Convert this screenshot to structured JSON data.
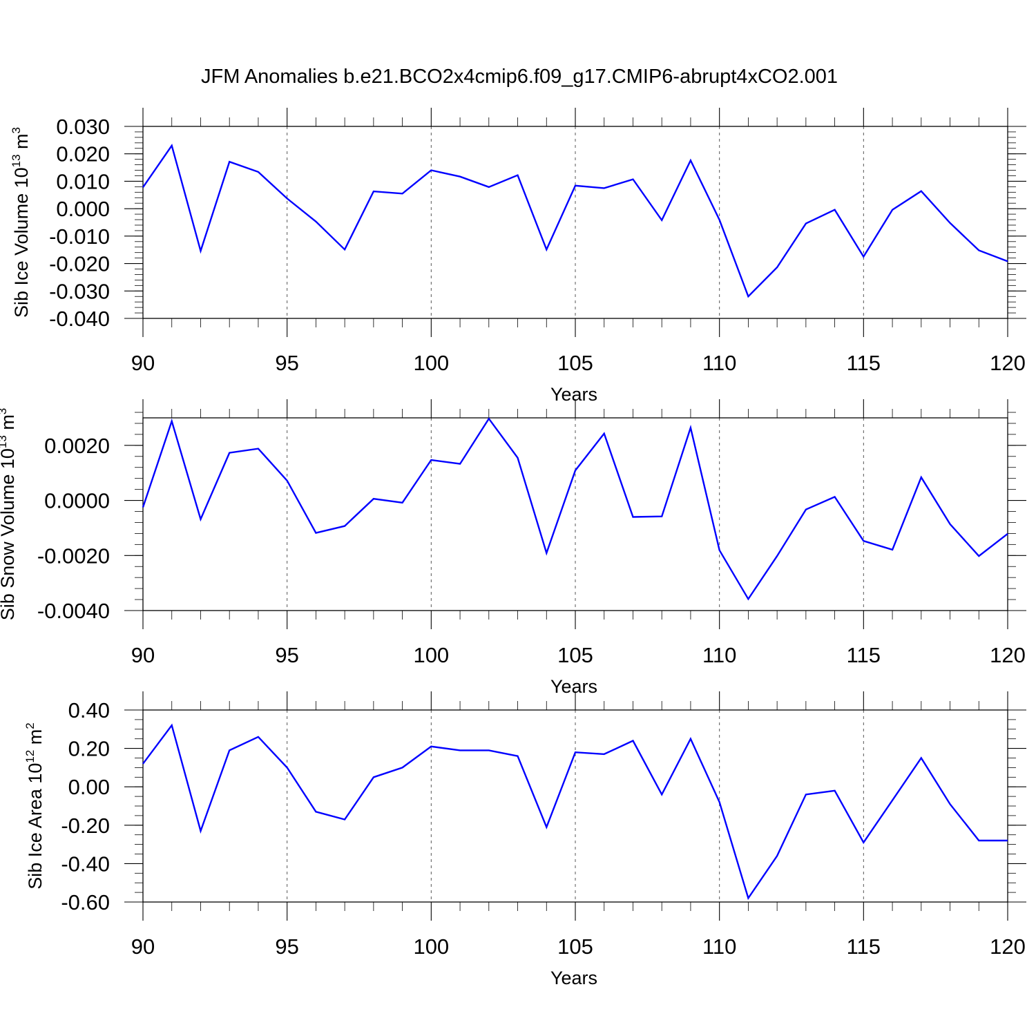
{
  "title": "JFM Anomalies b.e21.BCO2x4cmip6.f09_g17.CMIP6-abrupt4xCO2.001",
  "colors": {
    "series": "#0000ff",
    "axis": "#000000",
    "grid": "#555555"
  },
  "chart_data": [
    {
      "type": "line",
      "xlabel": "Years",
      "ylabel_main": "Sib Ice Volume 10",
      "ylabel_exp": "13",
      "ylabel_unit": " m",
      "ylabel_unit_exp": "3",
      "xlim": [
        90,
        120
      ],
      "ylim": [
        -0.04,
        0.03
      ],
      "x_ticks": [
        "90",
        "95",
        "100",
        "105",
        "110",
        "115",
        "120"
      ],
      "y_ticks": [
        {
          "value": 0.03,
          "label": "0.030"
        },
        {
          "value": 0.02,
          "label": "0.020"
        },
        {
          "value": 0.01,
          "label": "0.010"
        },
        {
          "value": 0.0,
          "label": "0.000"
        },
        {
          "value": -0.01,
          "label": "-0.010"
        },
        {
          "value": -0.02,
          "label": "-0.020"
        },
        {
          "value": -0.03,
          "label": "-0.030"
        },
        {
          "value": -0.04,
          "label": "-0.040"
        }
      ],
      "y_minor_step": 0.002,
      "grid": "dashed vertical at x tick positions",
      "x": [
        90,
        91,
        92,
        93,
        94,
        95,
        96,
        97,
        98,
        99,
        100,
        101,
        102,
        103,
        104,
        105,
        106,
        107,
        108,
        109,
        110,
        111,
        112,
        113,
        114,
        115,
        116,
        117,
        118,
        119,
        120
      ],
      "values": [
        0.0078,
        0.023,
        -0.0154,
        0.0171,
        0.0134,
        0.0037,
        -0.0047,
        -0.0149,
        0.0063,
        0.0055,
        0.014,
        0.0117,
        0.0079,
        0.0122,
        -0.0149,
        0.0084,
        0.0075,
        0.0107,
        -0.0042,
        0.0176,
        -0.0041,
        -0.032,
        -0.0214,
        -0.0054,
        -0.0004,
        -0.0175,
        -0.0004,
        0.0064,
        -0.0052,
        -0.0152,
        -0.0192
      ]
    },
    {
      "type": "line",
      "xlabel": "Years",
      "ylabel_main": "Sib Snow Volume 10",
      "ylabel_exp": "13",
      "ylabel_unit": " m",
      "ylabel_unit_exp": "3",
      "xlim": [
        90,
        120
      ],
      "ylim": [
        -0.004,
        0.003
      ],
      "x_ticks": [
        "90",
        "95",
        "100",
        "105",
        "110",
        "115",
        "120"
      ],
      "y_ticks": [
        {
          "value": 0.002,
          "label": "0.0020"
        },
        {
          "value": 0.0,
          "label": "0.0000"
        },
        {
          "value": -0.002,
          "label": "-0.0020"
        },
        {
          "value": -0.004,
          "label": "-0.0040"
        }
      ],
      "y_minor_step": 0.0004,
      "grid": "dashed vertical at x tick positions",
      "x": [
        90,
        91,
        92,
        93,
        94,
        95,
        96,
        97,
        98,
        99,
        100,
        101,
        102,
        103,
        104,
        105,
        106,
        107,
        108,
        109,
        110,
        111,
        112,
        113,
        114,
        115,
        116,
        117,
        118,
        119,
        120
      ],
      "values": [
        -0.00025,
        0.00288,
        -0.00068,
        0.00173,
        0.00188,
        0.00072,
        -0.00118,
        -0.00093,
        6e-05,
        -8e-05,
        0.00147,
        0.00133,
        0.00297,
        0.00155,
        -0.00191,
        0.00109,
        0.00243,
        -0.0006,
        -0.00058,
        0.00264,
        -0.00181,
        -0.00358,
        -0.00202,
        -0.00033,
        0.00013,
        -0.00147,
        -0.00179,
        0.00084,
        -0.00086,
        -0.00202,
        -0.00121
      ]
    },
    {
      "type": "line",
      "xlabel": "Years",
      "ylabel_main": "Sib Ice Area 10",
      "ylabel_exp": "12",
      "ylabel_unit": " m",
      "ylabel_unit_exp": "2",
      "xlim": [
        90,
        120
      ],
      "ylim": [
        -0.6,
        0.4
      ],
      "x_ticks": [
        "90",
        "95",
        "100",
        "105",
        "110",
        "115",
        "120"
      ],
      "y_ticks": [
        {
          "value": 0.4,
          "label": "0.40"
        },
        {
          "value": 0.2,
          "label": "0.20"
        },
        {
          "value": 0.0,
          "label": "0.00"
        },
        {
          "value": -0.2,
          "label": "-0.20"
        },
        {
          "value": -0.4,
          "label": "-0.40"
        },
        {
          "value": -0.6,
          "label": "-0.60"
        }
      ],
      "y_minor_step": 0.05,
      "grid": "dashed vertical at x tick positions",
      "x": [
        90,
        91,
        92,
        93,
        94,
        95,
        96,
        97,
        98,
        99,
        100,
        101,
        102,
        103,
        104,
        105,
        106,
        107,
        108,
        109,
        110,
        111,
        112,
        113,
        114,
        115,
        116,
        117,
        118,
        119,
        120
      ],
      "values": [
        0.12,
        0.32,
        -0.23,
        0.19,
        0.26,
        0.1,
        -0.13,
        -0.17,
        0.05,
        0.1,
        0.21,
        0.19,
        0.19,
        0.16,
        -0.21,
        0.18,
        0.17,
        0.24,
        -0.04,
        0.25,
        -0.08,
        -0.58,
        -0.36,
        -0.04,
        -0.02,
        -0.29,
        -0.07,
        0.15,
        -0.09,
        -0.28,
        -0.28
      ]
    }
  ]
}
